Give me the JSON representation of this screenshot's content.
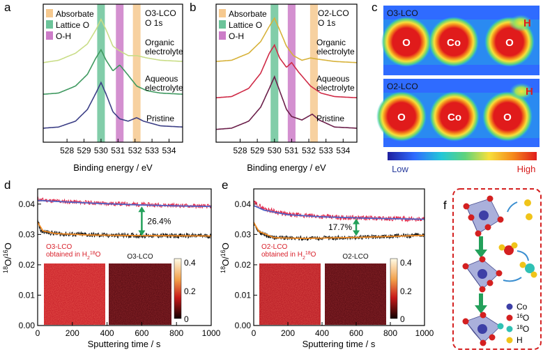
{
  "figure": {
    "panel_labels": [
      "a",
      "b",
      "c",
      "d",
      "e",
      "f"
    ]
  },
  "chart_data": [
    {
      "panel": "a",
      "type": "line",
      "title": "O3-LCO",
      "subtitle": "O 1s",
      "xlabel": "Binding energy / eV",
      "ylabel": "",
      "xlim": [
        526.6,
        534.8
      ],
      "x_reversed": false,
      "x_ticks": [
        528,
        529,
        530,
        531,
        532,
        533,
        534
      ],
      "y_ticks_shown": false,
      "legend": {
        "placement": "top-left",
        "entries": [
          {
            "name": "Absorbate",
            "color": "#f6c98f"
          },
          {
            "name": "Lattice O",
            "color": "#6cc49a"
          },
          {
            "name": "O-H",
            "color": "#cc7cc8"
          }
        ]
      },
      "bands": [
        {
          "name": "Lattice O",
          "x": 530.0,
          "width": 0.45,
          "color": "#6cc49a"
        },
        {
          "name": "O-H",
          "x": 531.1,
          "width": 0.45,
          "color": "#cc7cc8"
        },
        {
          "name": "Absorbate",
          "x": 532.1,
          "width": 0.45,
          "color": "#f6c98f"
        }
      ],
      "series": [
        {
          "name": "Organic electrolyte",
          "color": "#c9dd87",
          "label_lines": [
            "Organic",
            "electrolyte"
          ],
          "points": [
            [
              526.6,
              0.62
            ],
            [
              527.5,
              0.64
            ],
            [
              528.5,
              0.7
            ],
            [
              529.2,
              0.78
            ],
            [
              529.7,
              0.9
            ],
            [
              530.0,
              0.99
            ],
            [
              530.3,
              0.9
            ],
            [
              530.7,
              0.76
            ],
            [
              531.1,
              0.72
            ],
            [
              531.6,
              0.68
            ],
            [
              532.1,
              0.68
            ],
            [
              532.7,
              0.66
            ],
            [
              533.5,
              0.64
            ],
            [
              534.8,
              0.63
            ]
          ]
        },
        {
          "name": "Aqueous electrolyte",
          "color": "#3f9960",
          "label_lines": [
            "Aqueous",
            "electrolyte"
          ],
          "points": [
            [
              526.6,
              0.35
            ],
            [
              527.5,
              0.36
            ],
            [
              528.5,
              0.42
            ],
            [
              529.2,
              0.52
            ],
            [
              529.7,
              0.66
            ],
            [
              530.0,
              0.73
            ],
            [
              530.3,
              0.64
            ],
            [
              530.7,
              0.55
            ],
            [
              531.1,
              0.6
            ],
            [
              531.5,
              0.53
            ],
            [
              532.1,
              0.42
            ],
            [
              532.7,
              0.38
            ],
            [
              533.5,
              0.36
            ],
            [
              534.8,
              0.35
            ]
          ]
        },
        {
          "name": "Pristine",
          "color": "#3c3f86",
          "label_lines": [
            "Pristine"
          ],
          "points": [
            [
              526.6,
              0.06
            ],
            [
              527.5,
              0.07
            ],
            [
              528.5,
              0.12
            ],
            [
              529.2,
              0.22
            ],
            [
              529.7,
              0.36
            ],
            [
              530.0,
              0.45
            ],
            [
              530.3,
              0.35
            ],
            [
              530.7,
              0.2
            ],
            [
              531.1,
              0.14
            ],
            [
              531.6,
              0.12
            ],
            [
              532.1,
              0.15
            ],
            [
              532.5,
              0.12
            ],
            [
              533.5,
              0.08
            ],
            [
              534.8,
              0.07
            ]
          ]
        }
      ]
    },
    {
      "panel": "b",
      "type": "line",
      "title": "O2-LCO",
      "subtitle": "O 1s",
      "xlabel": "Binding energy / eV",
      "ylabel": "",
      "xlim": [
        526.6,
        534.8
      ],
      "x_ticks": [
        528,
        529,
        530,
        531,
        532,
        533,
        534
      ],
      "y_ticks_shown": false,
      "legend": {
        "placement": "top-left",
        "entries": [
          {
            "name": "Absorbate",
            "color": "#f6c98f"
          },
          {
            "name": "Lattice O",
            "color": "#6cc49a"
          },
          {
            "name": "O-H",
            "color": "#cc7cc8"
          }
        ]
      },
      "bands": [
        {
          "name": "Lattice O",
          "x": 530.0,
          "width": 0.45,
          "color": "#6cc49a"
        },
        {
          "name": "O-H",
          "x": 531.0,
          "width": 0.45,
          "color": "#cc7cc8"
        },
        {
          "name": "Absorbate",
          "x": 532.3,
          "width": 0.45,
          "color": "#f6c98f"
        }
      ],
      "series": [
        {
          "name": "Organic electrolyte",
          "color": "#d7b23a",
          "label_lines": [
            "Organic",
            "electrolyte"
          ],
          "points": [
            [
              526.6,
              0.63
            ],
            [
              527.5,
              0.64
            ],
            [
              528.5,
              0.7
            ],
            [
              529.2,
              0.8
            ],
            [
              529.7,
              0.93
            ],
            [
              530.0,
              1.0
            ],
            [
              530.3,
              0.9
            ],
            [
              530.7,
              0.76
            ],
            [
              531.1,
              0.68
            ],
            [
              531.6,
              0.64
            ],
            [
              532.1,
              0.66
            ],
            [
              532.5,
              0.65
            ],
            [
              533.5,
              0.63
            ],
            [
              534.8,
              0.62
            ]
          ]
        },
        {
          "name": "Aqueous electrolyte",
          "color": "#cf2a46",
          "label_lines": [
            "Aqueous",
            "electrolyte"
          ],
          "points": [
            [
              526.6,
              0.32
            ],
            [
              527.5,
              0.33
            ],
            [
              528.5,
              0.4
            ],
            [
              529.2,
              0.53
            ],
            [
              529.7,
              0.7
            ],
            [
              530.0,
              0.77
            ],
            [
              530.3,
              0.66
            ],
            [
              530.7,
              0.58
            ],
            [
              531.0,
              0.62
            ],
            [
              531.4,
              0.54
            ],
            [
              532.1,
              0.42
            ],
            [
              532.7,
              0.36
            ],
            [
              533.5,
              0.33
            ],
            [
              534.8,
              0.32
            ]
          ]
        },
        {
          "name": "Pristine",
          "color": "#6b1f4a",
          "label_lines": [
            "Pristine"
          ],
          "points": [
            [
              526.6,
              0.05
            ],
            [
              527.5,
              0.06
            ],
            [
              528.5,
              0.12
            ],
            [
              529.2,
              0.24
            ],
            [
              529.7,
              0.4
            ],
            [
              530.0,
              0.5
            ],
            [
              530.3,
              0.38
            ],
            [
              530.7,
              0.22
            ],
            [
              531.0,
              0.16
            ],
            [
              531.6,
              0.13
            ],
            [
              532.2,
              0.18
            ],
            [
              532.6,
              0.13
            ],
            [
              533.5,
              0.07
            ],
            [
              534.8,
              0.06
            ]
          ]
        }
      ]
    },
    {
      "panel": "c",
      "type": "heatmap",
      "colorbar": {
        "low_label": "Low",
        "high_label": "High",
        "stops": [
          "#1f1f9e",
          "#2f6bff",
          "#22c7d8",
          "#5fd37c",
          "#f7e03a",
          "#f58a1c",
          "#e01b1b"
        ]
      },
      "maps": [
        {
          "title": "O3-LCO",
          "atoms": [
            {
              "label": "O"
            },
            {
              "label": "Co"
            },
            {
              "label": "O"
            }
          ],
          "h_label": "H"
        },
        {
          "title": "O2-LCO",
          "atoms": [
            {
              "label": "O"
            },
            {
              "label": "Co"
            },
            {
              "label": "O"
            }
          ],
          "h_label": "H"
        }
      ]
    },
    {
      "panel": "d",
      "type": "line",
      "xlabel": "Sputtering time / s",
      "ylabel": "18O/16O",
      "xlim": [
        0,
        1000
      ],
      "ylim": [
        0,
        0.045
      ],
      "x_ticks": [
        0,
        200,
        400,
        600,
        800,
        1000
      ],
      "y_ticks": [
        0.0,
        0.01,
        0.02,
        0.03,
        0.04
      ],
      "annotation": {
        "text": "26.4%",
        "x": 600,
        "y_from": 0.0295,
        "y_to": 0.0392
      },
      "series": [
        {
          "name": "",
          "color": "#e0284b",
          "kind": "noisy",
          "level": [
            [
              0,
              0.0415
            ],
            [
              100,
              0.041
            ],
            [
              400,
              0.0402
            ],
            [
              1000,
              0.0392
            ]
          ],
          "noise": 0.0007
        },
        {
          "name": "",
          "color": "#4e62c4",
          "kind": "fit",
          "points": [
            [
              0,
              0.0412
            ],
            [
              200,
              0.0406
            ],
            [
              400,
              0.0401
            ],
            [
              600,
              0.0397
            ],
            [
              800,
              0.0394
            ],
            [
              1000,
              0.0392
            ]
          ]
        },
        {
          "name": "",
          "color": "#111111",
          "kind": "noisy",
          "level": [
            [
              0,
              0.0345
            ],
            [
              20,
              0.031
            ],
            [
              120,
              0.0302
            ],
            [
              400,
              0.0297
            ],
            [
              1000,
              0.0295
            ]
          ],
          "noise": 0.0008
        },
        {
          "name": "",
          "color": "#f08a22",
          "kind": "fit",
          "points": [
            [
              0,
              0.034
            ],
            [
              30,
              0.0312
            ],
            [
              100,
              0.0303
            ],
            [
              300,
              0.0298
            ],
            [
              600,
              0.0296
            ],
            [
              1000,
              0.0295
            ]
          ]
        }
      ],
      "insets": [
        {
          "caption_lines": [
            "O3-LCO",
            "obtained in H218O"
          ],
          "style": "bright"
        },
        {
          "caption_lines": [
            "O3-LCO"
          ],
          "style": "dark"
        }
      ],
      "inset_colorbar": {
        "ticks": [
          "0.4",
          "0.2",
          "0"
        ]
      }
    },
    {
      "panel": "e",
      "type": "line",
      "xlabel": "Sputtering time / s",
      "ylabel": "18O/16O",
      "xlim": [
        0,
        1000
      ],
      "ylim": [
        0,
        0.045
      ],
      "x_ticks": [
        0,
        200,
        400,
        600,
        800,
        1000
      ],
      "y_ticks": [
        0.0,
        0.01,
        0.02,
        0.03,
        0.04
      ],
      "annotation": {
        "text": "17.7%",
        "x": 600,
        "y_from": 0.0295,
        "y_to": 0.0352
      },
      "series": [
        {
          "name": "",
          "color": "#e0284b",
          "kind": "noisy",
          "level": [
            [
              0,
              0.0405
            ],
            [
              60,
              0.0385
            ],
            [
              200,
              0.0365
            ],
            [
              500,
              0.0356
            ],
            [
              1000,
              0.035
            ]
          ],
          "noise": 0.0008
        },
        {
          "name": "",
          "color": "#4e62c4",
          "kind": "fit",
          "points": [
            [
              0,
              0.0395
            ],
            [
              60,
              0.038
            ],
            [
              200,
              0.0365
            ],
            [
              400,
              0.0358
            ],
            [
              700,
              0.0353
            ],
            [
              1000,
              0.035
            ]
          ]
        },
        {
          "name": "",
          "color": "#111111",
          "kind": "noisy",
          "level": [
            [
              0,
              0.034
            ],
            [
              20,
              0.031
            ],
            [
              100,
              0.029
            ],
            [
              300,
              0.0287
            ],
            [
              600,
              0.029
            ],
            [
              1000,
              0.0298
            ]
          ],
          "noise": 0.0007
        },
        {
          "name": "",
          "color": "#f08a22",
          "kind": "fit",
          "points": [
            [
              0,
              0.034
            ],
            [
              30,
              0.031
            ],
            [
              120,
              0.0289
            ],
            [
              300,
              0.0287
            ],
            [
              600,
              0.029
            ],
            [
              1000,
              0.0297
            ]
          ]
        }
      ],
      "insets": [
        {
          "caption_lines": [
            "O2-LCO",
            "obtained in H218O"
          ],
          "style": "bright"
        },
        {
          "caption_lines": [
            "O2-LCO"
          ],
          "style": "dark"
        }
      ],
      "inset_colorbar": {
        "ticks": [
          "0.4",
          "0.2",
          "0"
        ]
      }
    }
  ],
  "schematic": {
    "panel": "f",
    "legend": [
      {
        "label": "Co",
        "color": "#3d3fa6"
      },
      {
        "label": "16O",
        "color": "#d42020"
      },
      {
        "label": "18O",
        "color": "#2fc1b4"
      },
      {
        "label": "H",
        "color": "#f0c419"
      }
    ]
  }
}
